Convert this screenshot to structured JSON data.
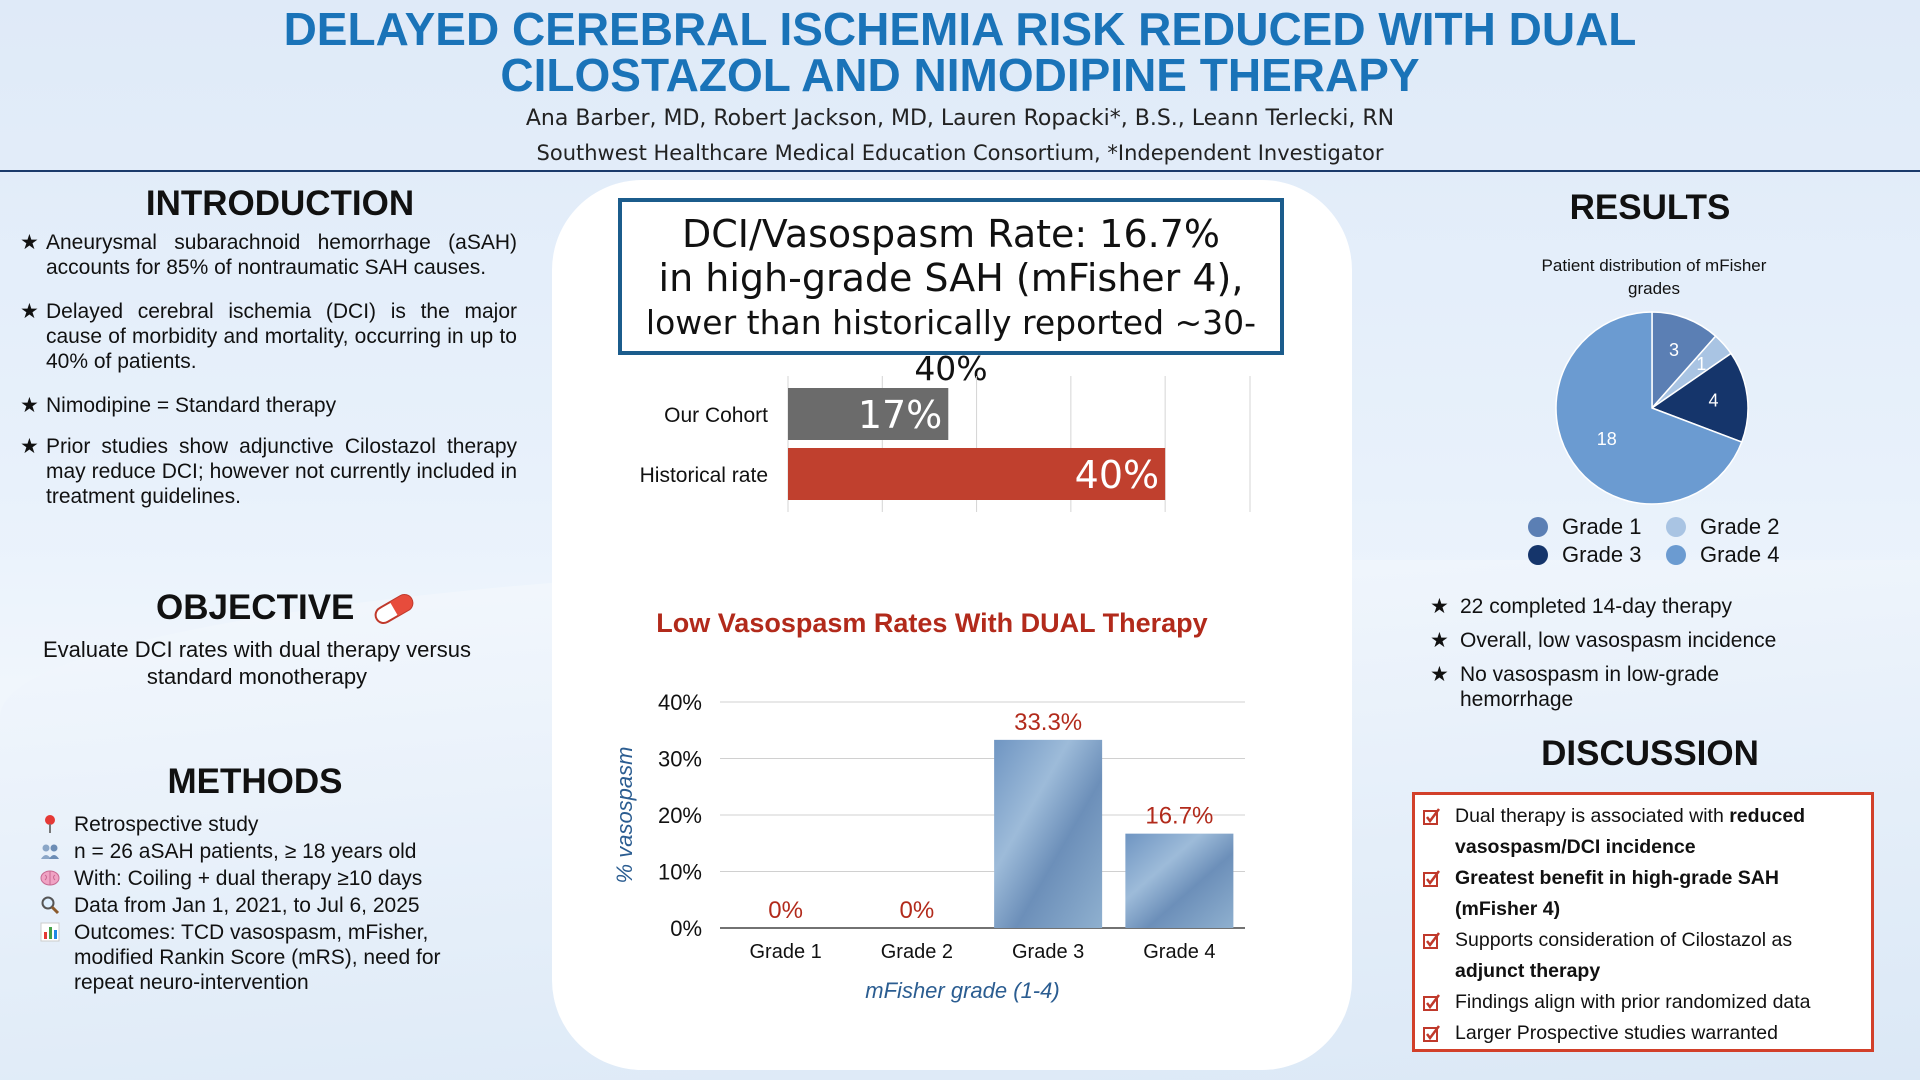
{
  "header": {
    "title_line1": "DELAYED  CEREBRAL ISCHEMIA RISK REDUCED WITH DUAL",
    "title_line2": "CILOSTAZOL AND NIMODIPINE THERAPY",
    "authors": "Ana Barber, MD, Robert Jackson, MD, Lauren Ropacki*, B.S., Leann Terlecki, RN",
    "affiliation": "Southwest Healthcare Medical Education Consortium, *Independent Investigator"
  },
  "introduction": {
    "heading": "INTRODUCTION",
    "bullets": [
      "Aneurysmal subarachnoid hemorrhage (aSAH) accounts for 85% of nontraumatic SAH causes.",
      "Delayed cerebral ischemia (DCI) is the major cause of morbidity and mortality, occurring in up to 40% of patients.",
      "Nimodipine = Standard therapy",
      "Prior studies show adjunctive Cilostazol therapy may reduce DCI; however not currently included in treatment guidelines."
    ]
  },
  "objective": {
    "heading": "OBJECTIVE",
    "icon": "pill-icon",
    "text": "Evaluate DCI rates with dual therapy versus standard monotherapy"
  },
  "methods": {
    "heading": "METHODS",
    "items": [
      {
        "icon": "pin-icon",
        "text": "Retrospective study"
      },
      {
        "icon": "people-icon",
        "text": "n = 26 aSAH patients, ≥ 18 years old"
      },
      {
        "icon": "brain-icon",
        "text": "With: Coiling + dual therapy ≥10 days"
      },
      {
        "icon": "magnifier-icon",
        "text": "Data from Jan 1, 2021, to Jul 6, 2025"
      },
      {
        "icon": "bar-chart-icon",
        "text": "Outcomes: TCD vasospasm, mFisher, modified Rankin Score (mRS), need for repeat neuro-intervention"
      }
    ]
  },
  "callout": {
    "line1": "DCI/Vasospasm Rate: 16.7%",
    "line2": "in high-grade SAH (mFisher 4),",
    "line3": "lower than historically reported ~30-40%"
  },
  "colors": {
    "title_blue": "#1a73b8",
    "cohort_bar": "#6b6b6b",
    "historical_bar": "#c0402e",
    "accent_red": "#b22a1b",
    "grade1": "#5b7fb4",
    "grade2": "#a9c4e3",
    "grade3": "#15356b",
    "grade4": "#6b9bd1"
  },
  "chart_data": [
    {
      "type": "bar",
      "orientation": "horizontal",
      "categories": [
        "Our Cohort",
        "Historical rate"
      ],
      "values": [
        17,
        40
      ],
      "value_labels": [
        "17%",
        "40%"
      ],
      "xlim": [
        0,
        40
      ],
      "grid": true
    },
    {
      "type": "bar",
      "title": "Low Vasospasm Rates With DUAL Therapy",
      "categories": [
        "Grade 1",
        "Grade 2",
        "Grade 3",
        "Grade 4"
      ],
      "values": [
        0,
        0,
        33.3,
        16.7
      ],
      "value_labels": [
        "0%",
        "0%",
        "33.3%",
        "16.7%"
      ],
      "xlabel": "mFisher grade (1-4)",
      "ylabel": "% vasospasm",
      "ylim": [
        0,
        40
      ],
      "yticks": [
        "0%",
        "10%",
        "20%",
        "30%",
        "40%"
      ],
      "grid": true
    },
    {
      "type": "pie",
      "title": "Patient distribution of mFisher grades",
      "categories": [
        "Grade 1",
        "Grade 2",
        "Grade 3",
        "Grade 4"
      ],
      "values": [
        3,
        1,
        4,
        18
      ],
      "legend": "bottom"
    }
  ],
  "results": {
    "heading": "RESULTS",
    "bullets": [
      "22 completed 14-day therapy",
      "Overall, low vasospasm incidence",
      "No vasospasm in low-grade hemorrhage"
    ]
  },
  "discussion": {
    "heading": "DISCUSSION",
    "items": [
      {
        "text": "Dual therapy is associated with ",
        "bold": "reduced vasospasm/DCI incidence"
      },
      {
        "text": "",
        "bold": "Greatest benefit in high-grade SAH (mFisher 4)"
      },
      {
        "text": "Supports consideration of Cilostazol as ",
        "bold": "adjunct therapy"
      },
      {
        "text": "Findings align with prior randomized data",
        "bold": ""
      },
      {
        "text": "Larger Prospective studies warranted",
        "bold": ""
      }
    ]
  }
}
